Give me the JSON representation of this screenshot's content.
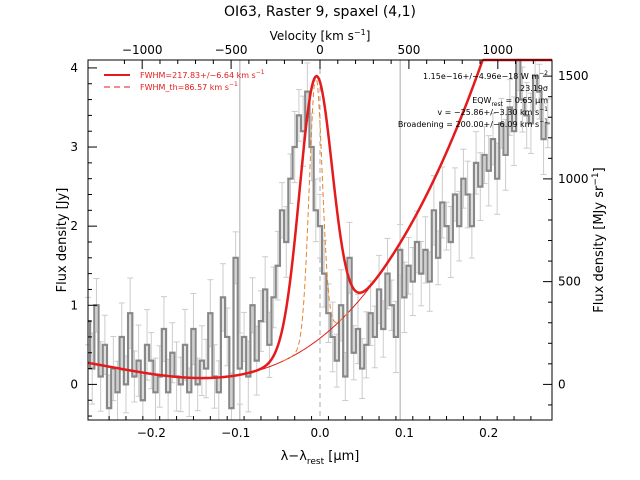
{
  "chart_data": {
    "type": "line",
    "title": "OI63, Raster 9, spaxel (4,1)",
    "xlabel_main": "λ−λ",
    "xlabel_sub": "rest",
    "xlabel_unit": " [μm]",
    "top_axis_label": "Velocity [km s",
    "top_axis_label_sup": "−1",
    "top_axis_label_end": "]",
    "ylabel_left": "Flux density [Jy]",
    "ylabel_right": "Flux density [MJy sr",
    "ylabel_right_sup": "−1",
    "ylabel_right_end": "]",
    "xlim": [
      -0.275,
      0.275
    ],
    "ylim": [
      -0.45,
      4.1
    ],
    "xticks": [
      -0.2,
      -0.1,
      0.0,
      0.1,
      0.2
    ],
    "xtick_labels": [
      "−0.2",
      "−0.1",
      "0.0",
      "0.1",
      "0.2"
    ],
    "yticks": [
      0,
      1,
      2,
      3,
      4
    ],
    "ytick_labels": [
      "0",
      "1",
      "2",
      "3",
      "4"
    ],
    "top_ticks_kms": [
      -1000,
      -500,
      0,
      500,
      1000
    ],
    "top_tick_labels": [
      "−1000",
      "−500",
      "0",
      "500",
      "1000"
    ],
    "right_ticks_mjy": [
      0,
      500,
      1000,
      1500
    ],
    "right_tick_labels": [
      "0",
      "500",
      "1000",
      "1500"
    ],
    "vertical_lines_x": [
      -0.095,
      0.0,
      0.095
    ],
    "legend": [
      {
        "label": "FWHM=217.83+/−6.64 km s",
        "sup": "−1",
        "style": "solid",
        "color": "#e41a1c"
      },
      {
        "label": "FWHM_th=86.57 km s",
        "sup": "−1",
        "style": "dashed",
        "color": "#e41a1c"
      }
    ],
    "annotations": [
      "1.15e−16+/−4.96e−18 W m",
      "23.19σ",
      "EQW",
      "v = −25.86+/−3.30 km s",
      "Broadening = 200.00+/−6.09 km s"
    ],
    "annotation_sups": [
      "−2",
      "",
      "",
      "−1",
      "−1"
    ],
    "eqw_sub": "rest",
    "eqw_value": " = 0.65 μm",
    "series": [
      {
        "style": "histogram",
        "color": "#888888",
        "x": [
          -0.275,
          -0.27,
          -0.265,
          -0.26,
          -0.255,
          -0.25,
          -0.245,
          -0.24,
          -0.235,
          -0.23,
          -0.225,
          -0.22,
          -0.215,
          -0.21,
          -0.205,
          -0.2,
          -0.195,
          -0.19,
          -0.185,
          -0.18,
          -0.175,
          -0.17,
          -0.165,
          -0.16,
          -0.155,
          -0.15,
          -0.145,
          -0.14,
          -0.135,
          -0.13,
          -0.125,
          -0.12,
          -0.115,
          -0.11,
          -0.105,
          -0.1,
          -0.095,
          -0.09,
          -0.085,
          -0.08,
          -0.075,
          -0.07,
          -0.065,
          -0.06,
          -0.055,
          -0.05,
          -0.045,
          -0.04,
          -0.035,
          -0.03,
          -0.025,
          -0.02,
          -0.015,
          -0.01,
          -0.005,
          0.0,
          0.005,
          0.01,
          0.015,
          0.02,
          0.025,
          0.03,
          0.035,
          0.04,
          0.045,
          0.05,
          0.055,
          0.06,
          0.065,
          0.07,
          0.075,
          0.08,
          0.085,
          0.09,
          0.095,
          0.1,
          0.105,
          0.11,
          0.115,
          0.12,
          0.125,
          0.13,
          0.135,
          0.14,
          0.145,
          0.15,
          0.155,
          0.16,
          0.165,
          0.17,
          0.175,
          0.18,
          0.185,
          0.19,
          0.195,
          0.2,
          0.205,
          0.21,
          0.215,
          0.22,
          0.225,
          0.23,
          0.235,
          0.24,
          0.245,
          0.25,
          0.255,
          0.26,
          0.265,
          0.27
        ],
        "values": [
          0.8,
          0.2,
          1.0,
          0.1,
          0.5,
          -0.3,
          0.2,
          -0.1,
          0.6,
          0.0,
          0.9,
          0.1,
          0.3,
          -0.2,
          0.5,
          0.3,
          -0.1,
          0.1,
          0.7,
          -0.1,
          0.4,
          0.1,
          0.0,
          0.5,
          -0.1,
          0.7,
          0.0,
          0.3,
          0.2,
          0.9,
          0.1,
          -0.1,
          1.1,
          0.6,
          -0.3,
          1.6,
          0.2,
          0.6,
          0.1,
          1.0,
          0.3,
          0.8,
          1.2,
          0.5,
          1.1,
          1.5,
          2.2,
          1.8,
          2.6,
          3.0,
          3.4,
          3.2,
          3.7,
          3.0,
          2.2,
          2.0,
          1.4,
          0.9,
          0.6,
          0.3,
          1.0,
          0.1,
          1.6,
          0.4,
          0.7,
          0.2,
          0.5,
          0.9,
          0.6,
          1.2,
          0.7,
          1.4,
          1.0,
          0.6,
          1.7,
          1.1,
          1.5,
          1.3,
          1.8,
          1.4,
          1.7,
          1.3,
          2.2,
          1.6,
          2.3,
          2.0,
          1.8,
          2.4,
          2.0,
          2.6,
          2.4,
          2.0,
          2.8,
          2.5,
          2.9,
          2.7,
          3.1,
          2.6,
          3.3,
          2.9,
          3.5,
          3.2,
          4.1,
          3.6,
          3.4,
          3.3,
          3.9,
          3.7,
          3.1,
          3.3
        ]
      }
    ],
    "model": {
      "gauss_amp": 3.35,
      "gauss_center": -0.005,
      "gauss_sigma": 0.0193,
      "thermal_sigma": 0.0077,
      "baseline_poly": [
        0.08,
        0.0,
        18.0,
        55.0
      ],
      "baseline_center": -0.14
    }
  }
}
